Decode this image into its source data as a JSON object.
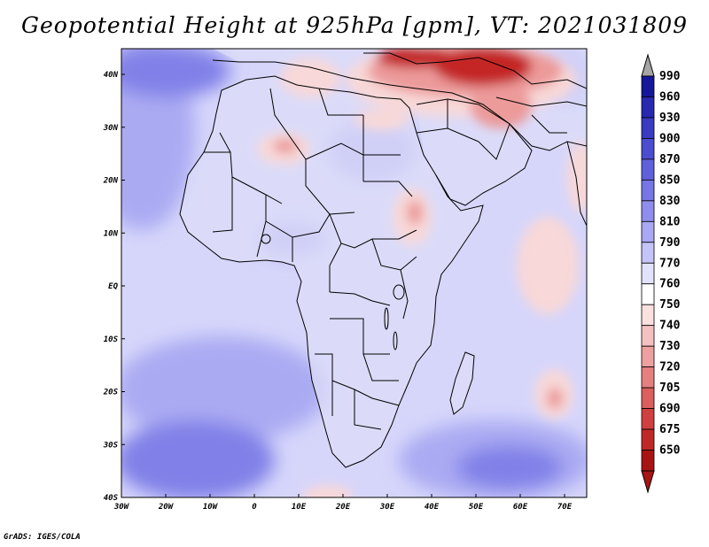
{
  "title": "Geopotential Height at 925hPa [gpm], VT: 2021031809",
  "footer": "GrADS: IGES/COLA",
  "colors": {
    "sea_low": "#d6d6fb",
    "sea_mid": "#aaaaf3",
    "sea_deep": "#8080e8",
    "land": "#dcdcf8",
    "warm_light": "#f8d8d8",
    "warm_mid": "#ec9a9a",
    "warm_deep": "#c42828",
    "border": "#000000"
  },
  "map": {
    "lat_labels": [
      "40N",
      "30N",
      "20N",
      "10N",
      "EQ",
      "10S",
      "20S",
      "30S",
      "40S"
    ],
    "lon_labels": [
      "30W",
      "20W",
      "10W",
      "0",
      "10E",
      "20E",
      "30E",
      "40E",
      "50E",
      "60E",
      "70E"
    ]
  },
  "colorbar": {
    "levels": [
      "990",
      "960",
      "930",
      "900",
      "870",
      "850",
      "830",
      "810",
      "790",
      "770",
      "760",
      "750",
      "740",
      "730",
      "720",
      "705",
      "690",
      "675",
      "650"
    ],
    "colors": [
      "#16169a",
      "#2828b0",
      "#3a3ac2",
      "#4c4cd0",
      "#6060dc",
      "#7676e6",
      "#8e8eee",
      "#a8a8f4",
      "#c4c4f9",
      "#e2e2fc",
      "#ffffff",
      "#fbe0e0",
      "#f5c0c0",
      "#eea0a0",
      "#e68080",
      "#dc5e5e",
      "#d04040",
      "#c02828",
      "#a81414"
    ],
    "over_color": "#a6a6a6",
    "under_color": "#a81414"
  }
}
